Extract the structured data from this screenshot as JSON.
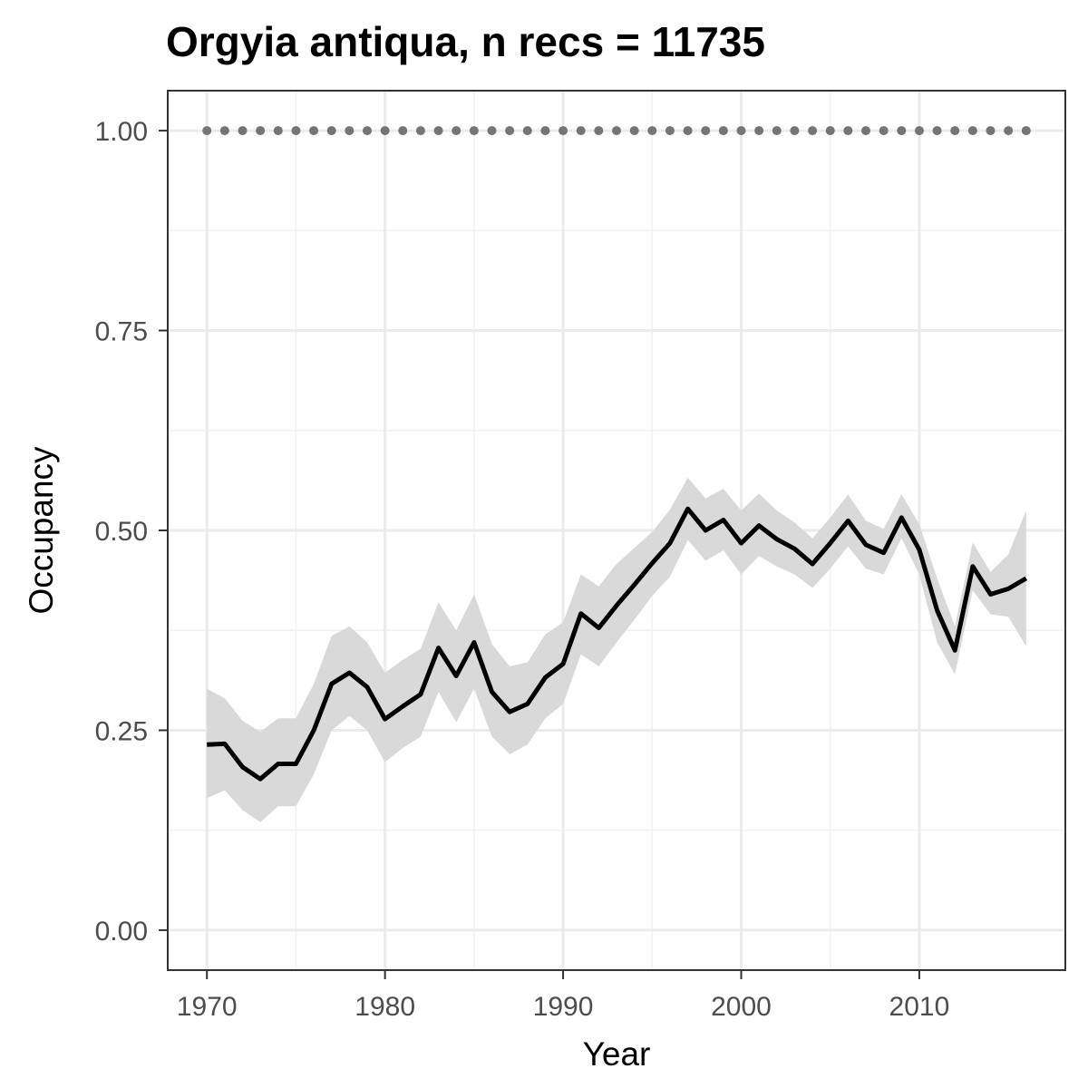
{
  "chart_data": {
    "type": "line",
    "title": "Orgyia antiqua, n recs = 11735",
    "xlabel": "Year",
    "ylabel": "Occupancy",
    "xlim": [
      1967.8,
      2018.2
    ],
    "ylim": [
      -0.05,
      1.05
    ],
    "x_ticks": [
      1970,
      1980,
      1990,
      2000,
      2010
    ],
    "y_ticks": [
      0.0,
      0.25,
      0.5,
      0.75,
      1.0
    ],
    "x_tick_labels": [
      "1970",
      "1980",
      "1990",
      "2000",
      "2010"
    ],
    "y_tick_labels": [
      "0.00",
      "0.25",
      "0.50",
      "0.75",
      "1.00"
    ],
    "grid": true,
    "legend": "none",
    "colors": {
      "line": "#000000",
      "ribbon": "#d9d9d9",
      "reference_points": "#757575"
    },
    "x": [
      1970,
      1971,
      1972,
      1973,
      1974,
      1975,
      1976,
      1977,
      1978,
      1979,
      1980,
      1981,
      1982,
      1983,
      1984,
      1985,
      1986,
      1987,
      1988,
      1989,
      1990,
      1991,
      1992,
      1993,
      1994,
      1995,
      1996,
      1997,
      1998,
      1999,
      2000,
      2001,
      2002,
      2003,
      2004,
      2005,
      2006,
      2007,
      2008,
      2009,
      2010,
      2011,
      2012,
      2013,
      2014,
      2015,
      2016
    ],
    "series": [
      {
        "values": [
          0.232,
          0.233,
          0.204,
          0.189,
          0.208,
          0.208,
          0.25,
          0.308,
          0.322,
          0.304,
          0.264,
          0.28,
          0.295,
          0.353,
          0.318,
          0.36,
          0.298,
          0.273,
          0.283,
          0.316,
          0.333,
          0.396,
          0.378,
          0.406,
          0.432,
          0.459,
          0.484,
          0.527,
          0.5,
          0.513,
          0.484,
          0.506,
          0.489,
          0.477,
          0.458,
          0.484,
          0.512,
          0.482,
          0.472,
          0.516,
          0.476,
          0.4,
          0.35,
          0.455,
          0.42,
          0.427,
          0.44
        ],
        "lower": [
          0.165,
          0.175,
          0.15,
          0.135,
          0.155,
          0.155,
          0.195,
          0.25,
          0.268,
          0.25,
          0.21,
          0.228,
          0.242,
          0.298,
          0.26,
          0.302,
          0.242,
          0.22,
          0.232,
          0.265,
          0.283,
          0.345,
          0.33,
          0.36,
          0.388,
          0.418,
          0.442,
          0.488,
          0.462,
          0.475,
          0.445,
          0.468,
          0.455,
          0.445,
          0.428,
          0.452,
          0.48,
          0.452,
          0.445,
          0.49,
          0.445,
          0.36,
          0.32,
          0.425,
          0.395,
          0.392,
          0.355
        ],
        "upper": [
          0.302,
          0.29,
          0.262,
          0.248,
          0.265,
          0.265,
          0.308,
          0.368,
          0.38,
          0.36,
          0.322,
          0.338,
          0.352,
          0.41,
          0.375,
          0.42,
          0.358,
          0.33,
          0.335,
          0.37,
          0.385,
          0.445,
          0.43,
          0.458,
          0.478,
          0.498,
          0.526,
          0.566,
          0.54,
          0.552,
          0.525,
          0.546,
          0.525,
          0.51,
          0.49,
          0.516,
          0.545,
          0.512,
          0.502,
          0.545,
          0.508,
          0.44,
          0.38,
          0.485,
          0.448,
          0.47,
          0.525
        ]
      }
    ],
    "reference_points": {
      "x": [
        1970,
        1971,
        1972,
        1973,
        1974,
        1975,
        1976,
        1977,
        1978,
        1979,
        1980,
        1981,
        1982,
        1983,
        1984,
        1985,
        1986,
        1987,
        1988,
        1989,
        1990,
        1991,
        1992,
        1993,
        1994,
        1995,
        1996,
        1997,
        1998,
        1999,
        2000,
        2001,
        2002,
        2003,
        2004,
        2005,
        2006,
        2007,
        2008,
        2009,
        2010,
        2011,
        2012,
        2013,
        2014,
        2015,
        2016
      ],
      "y": 1.0
    }
  }
}
